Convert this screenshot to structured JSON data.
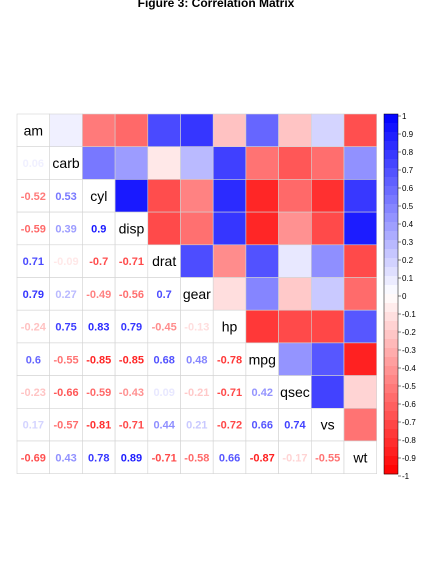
{
  "chart_data": {
    "type": "heatmap",
    "title": "Figure 3: Correlation Matrix",
    "variables": [
      "am",
      "carb",
      "cyl",
      "disp",
      "drat",
      "gear",
      "hp",
      "mpg",
      "qsec",
      "vs",
      "wt"
    ],
    "matrix": [
      [
        1,
        0.06,
        -0.52,
        -0.59,
        0.71,
        0.79,
        -0.24,
        0.6,
        -0.23,
        0.17,
        -0.69
      ],
      [
        0.06,
        1,
        0.53,
        0.39,
        -0.09,
        0.27,
        0.75,
        -0.55,
        -0.66,
        -0.57,
        0.43
      ],
      [
        -0.52,
        0.53,
        1,
        0.9,
        -0.7,
        -0.49,
        0.83,
        -0.85,
        -0.59,
        -0.81,
        0.78
      ],
      [
        -0.59,
        0.39,
        0.9,
        1,
        -0.71,
        -0.56,
        0.79,
        -0.85,
        -0.43,
        -0.71,
        0.89
      ],
      [
        0.71,
        -0.09,
        -0.7,
        -0.71,
        1,
        0.7,
        -0.45,
        0.68,
        0.09,
        0.44,
        -0.71
      ],
      [
        0.79,
        0.27,
        -0.49,
        -0.56,
        0.7,
        1,
        -0.13,
        0.48,
        -0.21,
        0.21,
        -0.58
      ],
      [
        -0.24,
        0.75,
        0.83,
        0.79,
        -0.45,
        -0.13,
        1,
        -0.78,
        -0.71,
        -0.72,
        0.66
      ],
      [
        0.6,
        -0.55,
        -0.85,
        -0.85,
        0.68,
        0.48,
        -0.78,
        1,
        0.42,
        0.66,
        -0.87
      ],
      [
        -0.23,
        -0.66,
        -0.59,
        -0.43,
        0.09,
        -0.21,
        -0.71,
        0.42,
        1,
        0.74,
        -0.17
      ],
      [
        0.17,
        -0.57,
        -0.81,
        -0.71,
        0.44,
        0.21,
        -0.72,
        0.66,
        0.74,
        1,
        -0.55
      ],
      [
        -0.69,
        0.43,
        0.78,
        0.89,
        -0.71,
        -0.58,
        0.66,
        -0.87,
        -0.17,
        -0.55,
        1
      ]
    ],
    "lower_triangle": "numbers",
    "upper_triangle": "colored squares",
    "colorbar": {
      "range": [
        -1,
        1
      ],
      "ticks": [
        "1",
        "0.9",
        "0.8",
        "0.7",
        "0.6",
        "0.5",
        "0.4",
        "0.3",
        "0.2",
        "0.1",
        "0",
        "-0.1",
        "-0.2",
        "-0.3",
        "-0.4",
        "-0.5",
        "-0.6",
        "-0.7",
        "-0.8",
        "-0.9",
        "-1"
      ],
      "placement": "right"
    },
    "colors": {
      "negative": "#ff0000",
      "zero": "#ffffff",
      "positive": "#0000ff",
      "grid": "#d3d3d3"
    }
  }
}
